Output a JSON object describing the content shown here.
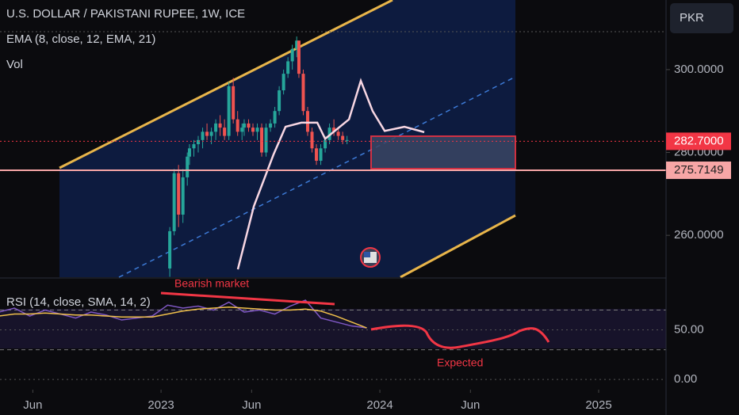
{
  "chart_data": [
    {
      "type": "candlestick",
      "title": "U.S. DOLLAR / PAKISTANI RUPEE, 1W, ICE",
      "indicators": [
        "EMA (8, close, 12, EMA, 21)",
        "Vol"
      ],
      "currency": "PKR",
      "up_color": "#26a69a",
      "down_color": "#ef5350",
      "x": [
        2023.04,
        2023.06,
        2023.08,
        2023.1,
        2023.12,
        2023.13,
        2023.15,
        2023.17,
        2023.19,
        2023.21,
        2023.23,
        2023.25,
        2023.27,
        2023.29,
        2023.31,
        2023.33,
        2023.35,
        2023.37,
        2023.38,
        2023.4,
        2023.42,
        2023.44,
        2023.46,
        2023.48,
        2023.5,
        2023.52,
        2023.54,
        2023.56,
        2023.58,
        2023.6,
        2023.62,
        2023.63,
        2023.65,
        2023.67,
        2023.69,
        2023.71,
        2023.73,
        2023.75,
        2023.77,
        2023.79,
        2023.81,
        2023.83,
        2023.85
      ],
      "open": [
        252,
        261,
        275,
        265,
        274,
        279,
        281,
        282,
        283,
        285,
        284,
        285,
        287,
        286,
        284,
        296,
        288,
        285,
        286,
        287,
        286,
        285,
        286,
        280,
        286,
        287,
        290,
        295,
        299,
        302,
        305,
        307,
        299,
        290,
        285,
        281,
        278,
        281,
        283,
        286,
        285,
        284,
        283
      ],
      "high": [
        262,
        276,
        277,
        276,
        280,
        282,
        283,
        284,
        286,
        287,
        286,
        288,
        289,
        288,
        297,
        298,
        290,
        287,
        288,
        288,
        287,
        287,
        287,
        287,
        288,
        291,
        296,
        300,
        303,
        306,
        308,
        307,
        300,
        291,
        286,
        282,
        282,
        284,
        287,
        288,
        286,
        285,
        284
      ],
      "low": [
        250,
        260,
        262,
        263,
        272,
        277,
        279,
        280,
        281,
        283,
        282,
        283,
        284,
        283,
        283,
        287,
        284,
        283,
        284,
        285,
        284,
        283,
        279,
        279,
        285,
        286,
        289,
        294,
        298,
        300,
        303,
        298,
        289,
        284,
        280,
        277,
        277,
        280,
        282,
        284,
        283,
        282,
        282
      ],
      "close": [
        261,
        275,
        265,
        274,
        279,
        281,
        282,
        283,
        285,
        284,
        285,
        287,
        286,
        284,
        296,
        288,
        285,
        286,
        287,
        286,
        285,
        286,
        280,
        286,
        287,
        290,
        295,
        299,
        302,
        305,
        307,
        299,
        290,
        285,
        281,
        278,
        281,
        283,
        286,
        285,
        284,
        283,
        283
      ],
      "ema": {
        "color": "#f8d7e3",
        "x": [
          2023.351,
          2023.424,
          2023.514,
          2023.569,
          2023.641,
          2023.714,
          2023.75,
          2023.859,
          2023.913,
          2023.967,
          2024.022,
          2024.112,
          2024.203
        ],
        "values": [
          251.8,
          267,
          279.5,
          286.2,
          287.2,
          287.2,
          283.3,
          288,
          297.3,
          290,
          285.2,
          286.2,
          284.9
        ]
      },
      "price_labels": [
        {
          "value": 282.7,
          "label": "282.7000",
          "color": "#f23645"
        },
        {
          "value": 275.7149,
          "label": "275.7149",
          "color": "#f7a6a6"
        }
      ],
      "ylim": [
        249.9,
        316.8
      ],
      "yticks": [
        {
          "value": 300,
          "label": "300.0000"
        },
        {
          "value": 280,
          "label": "280.0000"
        },
        {
          "value": 260,
          "label": "260.0000"
        }
      ],
      "xlim": [
        2022.264,
        2025.308
      ],
      "xticks": [
        {
          "value": 2022.414,
          "label": "Jun"
        },
        {
          "value": 2023,
          "label": "2023"
        },
        {
          "value": 2023.414,
          "label": "Jun"
        },
        {
          "value": 2024,
          "label": "2024"
        },
        {
          "value": 2024.414,
          "label": "Jun"
        },
        {
          "value": 2025,
          "label": "2025"
        }
      ]
    },
    {
      "type": "line",
      "title": "RSI (14, close, SMA, 14, 2)",
      "annotations": [
        "Bearish market",
        "Expected"
      ],
      "x": [
        2022.26,
        2022.33,
        2022.4,
        2022.47,
        2022.54,
        2022.61,
        2022.68,
        2022.75,
        2022.82,
        2022.89,
        2022.96,
        2023.03,
        2023.1,
        2023.17,
        2023.24,
        2023.31,
        2023.38,
        2023.45,
        2023.52,
        2023.59,
        2023.66,
        2023.73,
        2023.8,
        2023.87,
        2023.94
      ],
      "series": [
        {
          "color": "#7e57c2",
          "values": [
            68,
            72,
            64,
            70,
            66,
            62,
            68,
            65,
            60,
            62,
            64,
            75,
            72,
            74,
            70,
            78,
            68,
            70,
            66,
            74,
            80,
            62,
            58,
            54,
            52
          ]
        },
        {
          "color": "#f0c04a",
          "values": [
            64,
            66,
            66,
            67,
            66,
            65,
            65,
            64,
            63,
            63,
            63,
            66,
            69,
            71,
            72,
            73,
            72,
            71,
            70,
            70,
            71,
            69,
            64,
            58,
            52
          ]
        }
      ],
      "band": [
        30,
        70
      ],
      "ylim": [
        -10.3,
        101.6
      ],
      "yticks": [
        {
          "value": 50,
          "label": "50.00"
        },
        {
          "value": 0,
          "label": "0.00"
        }
      ]
    }
  ]
}
